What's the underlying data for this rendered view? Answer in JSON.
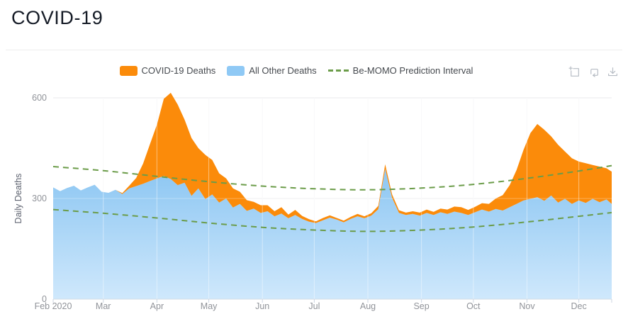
{
  "header": {
    "title": "COVID-19"
  },
  "legend": {
    "items": [
      {
        "label": "COVID-19 Deaths",
        "swatch_color": "#fb8b0a",
        "swatch_type": "area"
      },
      {
        "label": "All Other Deaths",
        "swatch_color": "#8fc9f5",
        "swatch_type": "area"
      },
      {
        "label": "Be-MOMO Prediction Interval",
        "swatch_color": "#6b9c49",
        "swatch_type": "dashed-line"
      }
    ]
  },
  "toolbox": {
    "icons": [
      {
        "name": "data-zoom"
      },
      {
        "name": "restore"
      },
      {
        "name": "save-as-image"
      }
    ]
  },
  "chart_data": {
    "type": "area",
    "stacked": true,
    "title": "COVID-19",
    "ylabel": "Daily Deaths",
    "ylim": [
      0,
      660
    ],
    "yticks": [
      0,
      300,
      600
    ],
    "grid": true,
    "legend_position": "top-center",
    "x_axis": {
      "start": "2020-02-01",
      "end": "2020-12-20",
      "tick_labels": [
        "Feb 2020",
        "Mar",
        "Apr",
        "May",
        "Jun",
        "Jul",
        "Aug",
        "Sep",
        "Oct",
        "Nov",
        "Dec"
      ],
      "tick_days": [
        0,
        29,
        60,
        90,
        121,
        151,
        182,
        213,
        243,
        274,
        304
      ]
    },
    "total_days": 323,
    "sample_interval_days": 4,
    "series": [
      {
        "name": "All Other Deaths",
        "color_top": "#8cc6f2",
        "color_bottom": "#cfe8fc",
        "values": [
          333,
          322,
          331,
          338,
          324,
          333,
          341,
          320,
          317,
          326,
          313,
          330,
          337,
          344,
          352,
          360,
          367,
          358,
          340,
          347,
          308,
          330,
          298,
          312,
          288,
          300,
          273,
          284,
          263,
          270,
          257,
          262,
          247,
          255,
          241,
          251,
          239,
          231,
          227,
          235,
          243,
          237,
          229,
          239,
          247,
          241,
          249,
          268,
          388,
          302,
          257,
          251,
          254,
          249,
          257,
          251,
          259,
          254,
          261,
          257,
          251,
          259,
          267,
          261,
          269,
          264,
          274,
          284,
          294,
          299,
          304,
          293,
          309,
          288,
          299,
          284,
          294,
          287,
          299,
          289,
          297,
          284
        ]
      },
      {
        "name": "COVID-19 Deaths",
        "color": "#fb8b0a",
        "values": [
          0,
          0,
          0,
          0,
          0,
          0,
          0,
          0,
          0,
          0,
          3,
          8,
          24,
          60,
          110,
          160,
          230,
          257,
          240,
          188,
          172,
          120,
          132,
          103,
          87,
          60,
          57,
          36,
          32,
          20,
          23,
          18,
          15,
          19,
          11,
          15,
          9,
          7,
          5,
          7,
          7,
          5,
          5,
          6,
          7,
          6,
          7,
          10,
          14,
          10,
          8,
          7,
          8,
          9,
          10,
          9,
          11,
          13,
          15,
          17,
          15,
          16,
          19,
          23,
          31,
          46,
          66,
          101,
          151,
          196,
          218,
          212,
          176,
          172,
          141,
          136,
          116,
          118,
          101,
          106,
          93,
          96
        ]
      }
    ],
    "prediction_interval": {
      "name": "Be-MOMO Prediction Interval",
      "color": "#6b9c49",
      "upper": [
        [
          0,
          395
        ],
        [
          29,
          383
        ],
        [
          60,
          366
        ],
        [
          90,
          350
        ],
        [
          121,
          337
        ],
        [
          151,
          329
        ],
        [
          182,
          326
        ],
        [
          213,
          331
        ],
        [
          243,
          342
        ],
        [
          274,
          360
        ],
        [
          304,
          382
        ],
        [
          323,
          398
        ]
      ],
      "lower": [
        [
          0,
          267
        ],
        [
          29,
          256
        ],
        [
          60,
          242
        ],
        [
          90,
          227
        ],
        [
          121,
          214
        ],
        [
          151,
          206
        ],
        [
          182,
          202
        ],
        [
          213,
          206
        ],
        [
          243,
          215
        ],
        [
          274,
          230
        ],
        [
          304,
          247
        ],
        [
          323,
          258
        ]
      ]
    }
  }
}
